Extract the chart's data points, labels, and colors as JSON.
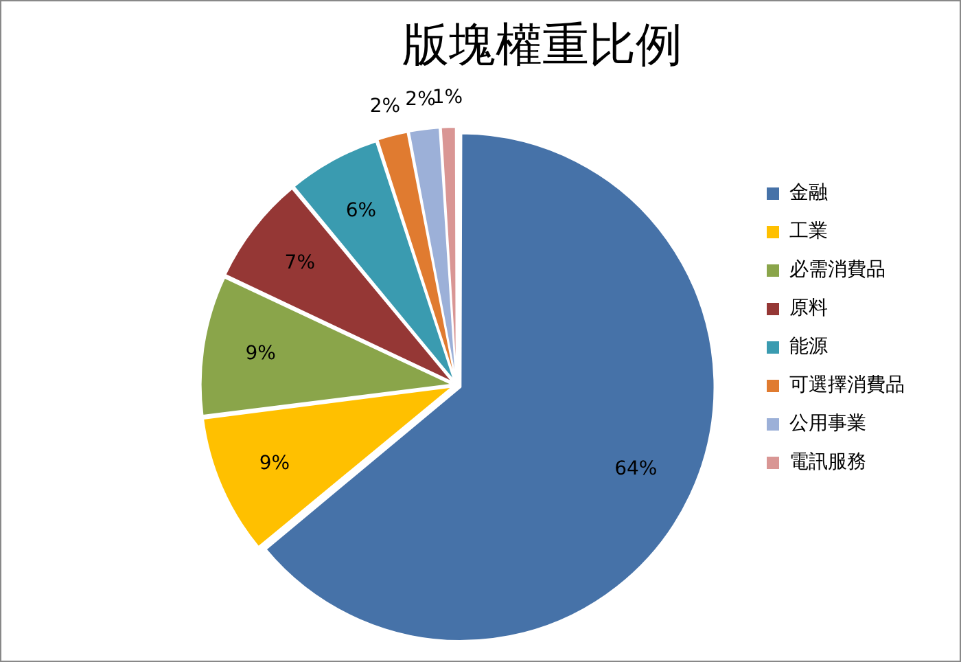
{
  "chart_data": {
    "type": "pie",
    "title": "版塊權重比例",
    "categories": [
      "金融",
      "工業",
      "必需消費品",
      "原料",
      "能源",
      "可選擇消費品",
      "公用事業",
      "電訊服務"
    ],
    "values": [
      64,
      9,
      9,
      7,
      6,
      2,
      2,
      1
    ],
    "colors": [
      "#4672a8",
      "#ffc000",
      "#8aa54a",
      "#953735",
      "#3a9bb0",
      "#e07b30",
      "#9cb0d8",
      "#d99694"
    ],
    "value_labels": [
      "64%",
      "9%",
      "9%",
      "7%",
      "6%",
      "2%",
      "2%",
      "1%"
    ],
    "legend": "right"
  }
}
